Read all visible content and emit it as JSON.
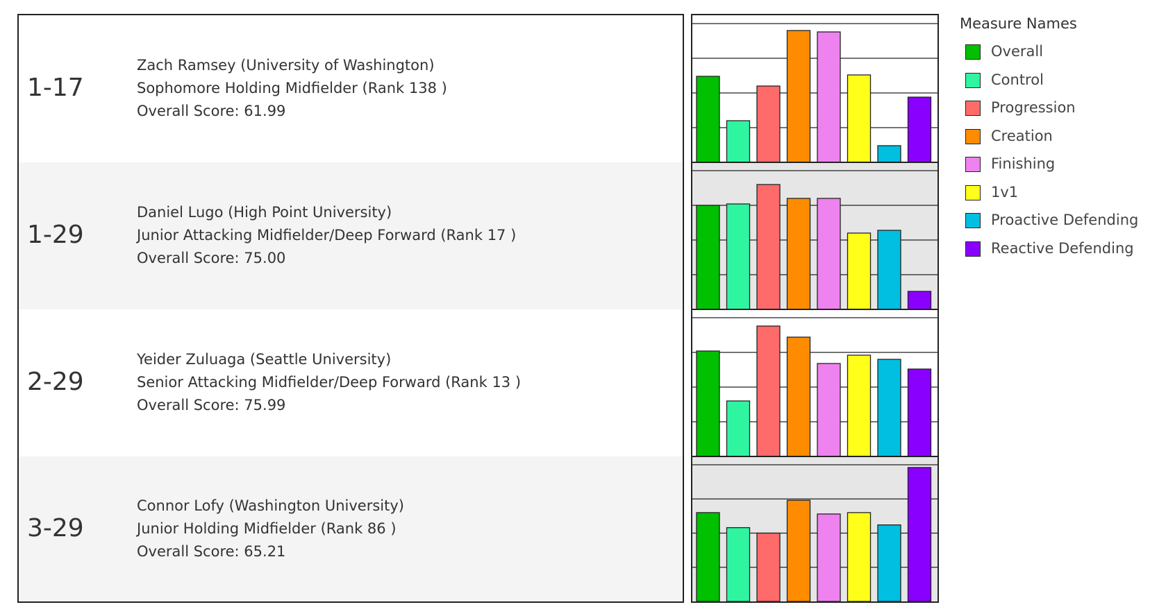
{
  "rows": [
    {
      "code": "1-17",
      "name_line": "Zach Ramsey (University of Washington)",
      "role_line": "Sophomore Holding Midfielder  (Rank 138 )",
      "score_line": "Overall Score: 61.99"
    },
    {
      "code": "1-29",
      "name_line": "Daniel Lugo (High Point University)",
      "role_line": "Junior Attacking Midfielder/Deep Forward  (Rank 17 )",
      "score_line": "Overall Score: 75.00"
    },
    {
      "code": "2-29",
      "name_line": "Yeider Zuluaga (Seattle University)",
      "role_line": "Senior Attacking Midfielder/Deep Forward  (Rank 13 )",
      "score_line": "Overall Score: 75.99"
    },
    {
      "code": "3-29",
      "name_line": "Connor Lofy (Washington University)",
      "role_line": "Junior Holding Midfielder  (Rank 86 )",
      "score_line": "Overall Score: 65.21"
    }
  ],
  "legend": {
    "title": "Measure Names"
  },
  "chart_data": {
    "type": "bar",
    "categories": [
      "Overall",
      "Control",
      "Progression",
      "Creation",
      "Finishing",
      "1v1",
      "Proactive Defending",
      "Reactive Defending"
    ],
    "colors": [
      "#00c000",
      "#2ff5a0",
      "#ff6a6a",
      "#ff8c00",
      "#ee82ee",
      "#ffff1a",
      "#00bfe0",
      "#8a00ff"
    ],
    "ylim": [
      0,
      100
    ],
    "grid": true,
    "legend_position": "right",
    "panels": [
      {
        "row": "1-17",
        "values": [
          62,
          30,
          55,
          95,
          94,
          63,
          12,
          47
        ]
      },
      {
        "row": "1-29",
        "values": [
          75,
          76,
          90,
          80,
          80,
          55,
          57,
          13
        ]
      },
      {
        "row": "2-29",
        "values": [
          76,
          40,
          94,
          86,
          67,
          73,
          70,
          63
        ]
      },
      {
        "row": "3-29",
        "values": [
          65,
          54,
          50,
          74,
          64,
          65,
          56,
          98
        ]
      }
    ]
  }
}
